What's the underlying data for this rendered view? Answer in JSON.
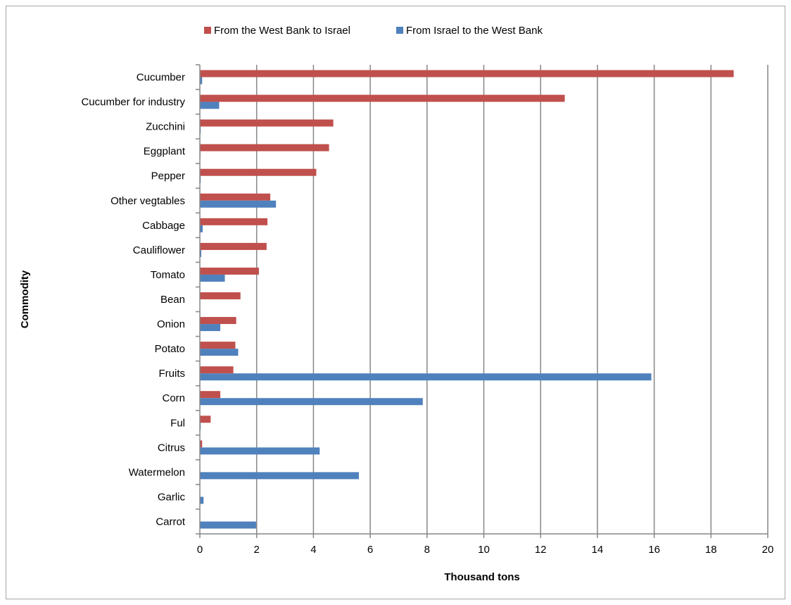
{
  "chart_data": {
    "type": "bar",
    "orientation": "horizontal",
    "categories": [
      "Cucumber",
      "Cucumber for industry",
      "Zucchini",
      "Eggplant",
      "Pepper",
      "Other vegtables",
      "Cabbage",
      "Cauliflower",
      "Tomato",
      "Bean",
      "Onion",
      "Potato",
      "Fruits",
      "Corn",
      "Ful",
      "Citrus",
      "Watermelon",
      "Garlic",
      "Carrot"
    ],
    "series": [
      {
        "name": "From the West Bank to Israel",
        "color": "#c0504d",
        "values": [
          18.8,
          12.85,
          4.7,
          4.55,
          4.1,
          2.48,
          2.38,
          2.35,
          2.08,
          1.43,
          1.28,
          1.25,
          1.18,
          0.72,
          0.38,
          0.08,
          0,
          0,
          0
        ]
      },
      {
        "name": "From Israel to the West Bank",
        "color": "#4f81bd",
        "values": [
          0.08,
          0.68,
          0.03,
          0.02,
          0.03,
          2.68,
          0.1,
          0.05,
          0.88,
          0,
          0.72,
          1.35,
          15.9,
          7.85,
          0.03,
          4.22,
          5.6,
          0.13,
          1.98
        ]
      }
    ],
    "xlabel": "Thousand tons",
    "ylabel": "Commodity",
    "xlim": [
      0,
      20
    ],
    "xticks": [
      "0",
      "2",
      "4",
      "6",
      "8",
      "10",
      "12",
      "14",
      "16",
      "18",
      "20"
    ],
    "grid": true,
    "legend": "top"
  }
}
